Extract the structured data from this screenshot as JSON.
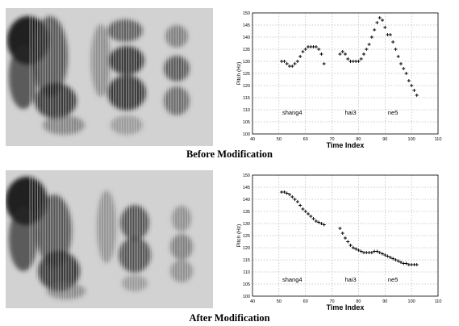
{
  "captions": {
    "before": "Before Modification",
    "after": "After  Modification"
  },
  "chart_data": [
    {
      "type": "scatter",
      "xlabel": "Time Index",
      "ylabel": "Pitch (Hz)",
      "xlim": [
        40,
        110
      ],
      "ylim": [
        100,
        150
      ],
      "xticks": [
        40,
        50,
        60,
        70,
        80,
        90,
        100,
        110
      ],
      "yticks": [
        100,
        105,
        110,
        115,
        120,
        125,
        130,
        135,
        140,
        145,
        150
      ],
      "grid": true,
      "marker": "+",
      "annotations": [
        {
          "text": "shang4",
          "x": 55,
          "y": 108
        },
        {
          "text": "hai3",
          "x": 77,
          "y": 108
        },
        {
          "text": "ne5",
          "x": 93,
          "y": 108
        }
      ],
      "series": [
        {
          "x": [
            51,
            52,
            53,
            54,
            55,
            56,
            57,
            58,
            59,
            60,
            61,
            62,
            63,
            64,
            65,
            66,
            67,
            73,
            74,
            75,
            76,
            77,
            78,
            79,
            80,
            81,
            82,
            83,
            84,
            85,
            86,
            87,
            88,
            89,
            90,
            91,
            92,
            93,
            94,
            95,
            96,
            97,
            98,
            99,
            100,
            101,
            102
          ],
          "y": [
            130,
            130,
            129,
            128,
            128,
            129,
            130,
            132,
            134,
            135,
            136,
            136,
            136,
            136,
            135,
            133,
            129,
            133,
            134,
            133,
            131,
            130,
            130,
            130,
            130,
            131,
            133,
            135,
            137,
            140,
            143,
            146,
            148,
            147,
            144,
            141,
            141,
            138,
            135,
            132,
            129,
            127,
            125,
            122,
            120,
            118,
            116
          ]
        }
      ]
    },
    {
      "type": "scatter",
      "xlabel": "Time Index",
      "ylabel": "Pitch (Hz)",
      "xlim": [
        40,
        110
      ],
      "ylim": [
        100,
        150
      ],
      "xticks": [
        40,
        50,
        60,
        70,
        80,
        90,
        100,
        110
      ],
      "yticks": [
        100,
        105,
        110,
        115,
        120,
        125,
        130,
        135,
        140,
        145,
        150
      ],
      "grid": true,
      "marker": "+",
      "annotations": [
        {
          "text": "shang4",
          "x": 55,
          "y": 106
        },
        {
          "text": "hai3",
          "x": 77,
          "y": 106
        },
        {
          "text": "ne5",
          "x": 93,
          "y": 106
        }
      ],
      "series": [
        {
          "x": [
            51,
            52,
            53,
            54,
            55,
            56,
            57,
            58,
            59,
            60,
            61,
            62,
            63,
            64,
            65,
            66,
            67,
            73,
            74,
            75,
            76,
            77,
            78,
            79,
            80,
            81,
            82,
            83,
            84,
            85,
            86,
            87,
            88,
            89,
            90,
            91,
            92,
            93,
            94,
            95,
            96,
            97,
            98,
            99,
            100,
            101,
            102
          ],
          "y": [
            143,
            143,
            142.5,
            142,
            141,
            140,
            139,
            137.5,
            136,
            135,
            134,
            133,
            132,
            131,
            130.5,
            130,
            129.5,
            128,
            126,
            124,
            122.5,
            121,
            120,
            119.5,
            119,
            118.5,
            118,
            118,
            118,
            118,
            118.5,
            118.5,
            118,
            117.5,
            117,
            116.5,
            116,
            115.5,
            115,
            114.5,
            114,
            113.5,
            113.5,
            113,
            113,
            113,
            113
          ]
        }
      ]
    }
  ]
}
